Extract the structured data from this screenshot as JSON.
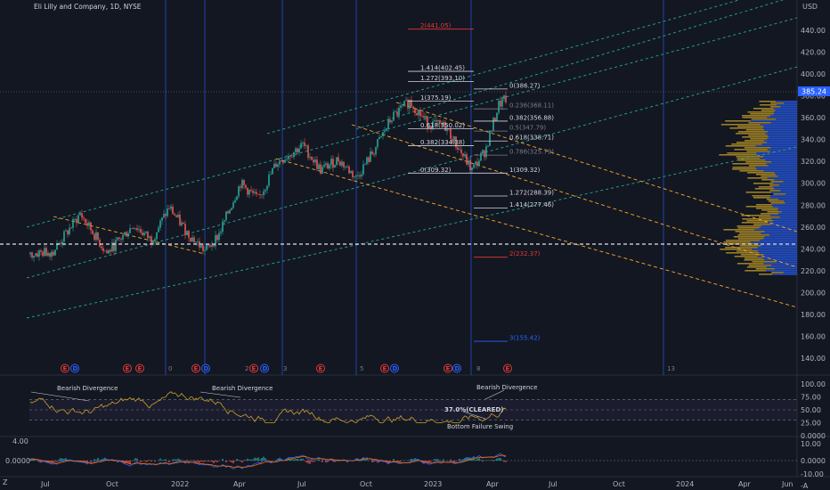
{
  "header": {
    "title": "Eli Lilly and Company, 1D, NYSE",
    "currency": "USD",
    "last_price_badge": "385.24",
    "corner_label": "Z",
    "axis_ticks_main": [
      "440.00",
      "420.00",
      "400.00",
      "380.00",
      "360.00",
      "340.00",
      "320.00",
      "300.00",
      "280.00",
      "260.00",
      "240.00",
      "220.00",
      "200.00",
      "180.00",
      "160.00",
      "140.00"
    ],
    "axis_ticks_rsi": [
      "100.00",
      "75.00",
      "50.00",
      "25.00",
      "0.0000"
    ],
    "axis_ticks_macd": [
      "10.00",
      "0.0000",
      "-10.00",
      "-A"
    ],
    "macd_left_ticks": [
      "4.00",
      "0.0000"
    ],
    "time_labels": [
      "Jul",
      "Oct",
      "2022",
      "Apr",
      "Jul",
      "Oct",
      "2023",
      "Apr",
      "Jul",
      "Oct",
      "2024",
      "Apr",
      "Jun"
    ]
  },
  "fib_levels": [
    {
      "label": "2(441.05)",
      "price": 441.05,
      "color": "#e53935",
      "x1": 458,
      "x2": 532
    },
    {
      "label": "1.414(402.45)",
      "price": 402.45,
      "color": "#d1d4dc",
      "x1": 458,
      "x2": 532
    },
    {
      "label": "1.272(393.10)",
      "price": 393.1,
      "color": "#d1d4dc",
      "x1": 458,
      "x2": 532
    },
    {
      "label": "0(386.27)",
      "price": 386.27,
      "color": "#d1d4dc",
      "x1": 532,
      "x2": 570
    },
    {
      "label": "1(375.19)",
      "price": 375.19,
      "color": "#d1d4dc",
      "x1": 458,
      "x2": 532
    },
    {
      "label": "0.236(368.11)",
      "price": 368.11,
      "color": "#787b86",
      "x1": 532,
      "x2": 570
    },
    {
      "label": "0.382(356.88)",
      "price": 356.88,
      "color": "#d1d4dc",
      "x1": 532,
      "x2": 570
    },
    {
      "label": "0.618(350.02)",
      "price": 350.02,
      "color": "#d1d4dc",
      "x1": 458,
      "x2": 532
    },
    {
      "label": "0.5(347.79)",
      "price": 347.79,
      "color": "#787b86",
      "x1": 532,
      "x2": 570
    },
    {
      "label": "0.382(334.38)",
      "price": 334.38,
      "color": "#d1d4dc",
      "x1": 458,
      "x2": 532
    },
    {
      "label": "0.618(338.71)",
      "price": 338.71,
      "color": "#d1d4dc",
      "x1": 532,
      "x2": 570
    },
    {
      "label": "0.786(325.79)",
      "price": 325.79,
      "color": "#787b86",
      "x1": 532,
      "x2": 570
    },
    {
      "label": "0(309.32)",
      "price": 309.32,
      "color": "#d1d4dc",
      "x1": 458,
      "x2": 532
    },
    {
      "label": "1(309.32)",
      "price": 309.32,
      "color": "#d1d4dc",
      "x1": 532,
      "x2": 570
    },
    {
      "label": "1.272(288.39)",
      "price": 288.39,
      "color": "#d1d4dc",
      "x1": 532,
      "x2": 570
    },
    {
      "label": "1.414(277.46)",
      "price": 277.46,
      "color": "#d1d4dc",
      "x1": 532,
      "x2": 570
    },
    {
      "label": "2(232.37)",
      "price": 232.37,
      "color": "#e53935",
      "x1": 532,
      "x2": 570
    },
    {
      "label": "3(155.42)",
      "price": 155.42,
      "color": "#2962ff",
      "x1": 532,
      "x2": 570
    }
  ],
  "cycle_numbers": [
    "0",
    "2",
    "3",
    "5",
    "8",
    "13"
  ],
  "rsi_annotations": {
    "left": "Bearish Divergence",
    "middle": "Bearish Divergence",
    "right": "Bearish Divergence",
    "cleared": "37.0%(CLEARED)",
    "bottom": "Bottom Failure Swing"
  },
  "events": [
    {
      "type": "E",
      "color": "#e53935"
    },
    {
      "type": "D",
      "color": "#2962ff"
    }
  ],
  "colors": {
    "background": "#131722",
    "up": "#26a69a",
    "down": "#ef5350",
    "channel": "#26a69a",
    "fib_dashed": "#f9a825",
    "vline": "#2962ff",
    "volume_profile_up": "#2962ff",
    "volume_profile_down": "#c9a227",
    "rsi_line": "#c9a227"
  }
}
